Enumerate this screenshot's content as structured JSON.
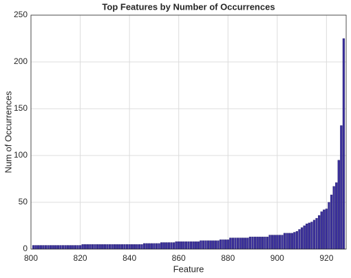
{
  "chart_data": {
    "type": "bar",
    "title": "Top Features by Number of Occurrences",
    "xlabel": "Feature",
    "ylabel": "Num of Occurrences",
    "x": [
      801,
      802,
      803,
      804,
      805,
      806,
      807,
      808,
      809,
      810,
      811,
      812,
      813,
      814,
      815,
      816,
      817,
      818,
      819,
      820,
      821,
      822,
      823,
      824,
      825,
      826,
      827,
      828,
      829,
      830,
      831,
      832,
      833,
      834,
      835,
      836,
      837,
      838,
      839,
      840,
      841,
      842,
      843,
      844,
      845,
      846,
      847,
      848,
      849,
      850,
      851,
      852,
      853,
      854,
      855,
      856,
      857,
      858,
      859,
      860,
      861,
      862,
      863,
      864,
      865,
      866,
      867,
      868,
      869,
      870,
      871,
      872,
      873,
      874,
      875,
      876,
      877,
      878,
      879,
      880,
      881,
      882,
      883,
      884,
      885,
      886,
      887,
      888,
      889,
      890,
      891,
      892,
      893,
      894,
      895,
      896,
      897,
      898,
      899,
      900,
      901,
      902,
      903,
      904,
      905,
      906,
      907,
      908,
      909,
      910,
      911,
      912,
      913,
      914,
      915,
      916,
      917,
      918,
      919,
      920,
      921,
      922,
      923,
      924,
      925,
      926,
      927
    ],
    "values": [
      4,
      4,
      4,
      4,
      4,
      4,
      4,
      4,
      4,
      4,
      4,
      4,
      4,
      4,
      4,
      4,
      4,
      4,
      4,
      4,
      5,
      5,
      5,
      5,
      5,
      5,
      5,
      5,
      5,
      5,
      5,
      5,
      5,
      5,
      5,
      5,
      5,
      5,
      5,
      5,
      5,
      5,
      5,
      5,
      5,
      6,
      6,
      6,
      6,
      6,
      6,
      6,
      7,
      7,
      7,
      7,
      7,
      7,
      8,
      8,
      8,
      8,
      8,
      8,
      8,
      8,
      8,
      8,
      9,
      9,
      9,
      9,
      9,
      9,
      9,
      9,
      10,
      10,
      10,
      10,
      12,
      12,
      12,
      12,
      12,
      12,
      12,
      12,
      13,
      13,
      13,
      13,
      13,
      13,
      13,
      13,
      15,
      15,
      15,
      15,
      15,
      15,
      17,
      17,
      17,
      17,
      18,
      19,
      21,
      23,
      25,
      27,
      28,
      29,
      31,
      33,
      36,
      40,
      42,
      43,
      50,
      58,
      67,
      71,
      95,
      132,
      225
    ],
    "color": "#3b309c",
    "xlim": [
      800,
      928
    ],
    "xticks": [
      800,
      820,
      840,
      860,
      880,
      900,
      920
    ],
    "ylim": [
      0,
      250
    ],
    "yticks": [
      0,
      50,
      100,
      150,
      200,
      250
    ],
    "grid": true
  }
}
